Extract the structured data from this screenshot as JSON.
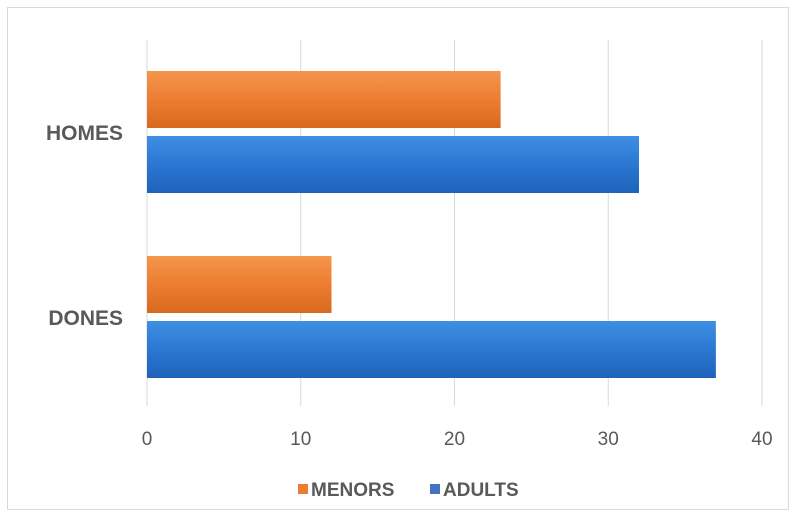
{
  "chart_data": {
    "type": "bar",
    "orientation": "horizontal",
    "categories": [
      "HOMES",
      "DONES"
    ],
    "series": [
      {
        "name": "MENORS",
        "values": [
          23,
          12
        ],
        "color": "#ED7D31"
      },
      {
        "name": "ADULTS",
        "values": [
          32,
          37
        ],
        "color": "#4472C4"
      }
    ],
    "x_ticks": [
      "0",
      "10",
      "20",
      "30",
      "40"
    ],
    "xlim": [
      0,
      40
    ],
    "grid": true,
    "legend_position": "bottom"
  }
}
